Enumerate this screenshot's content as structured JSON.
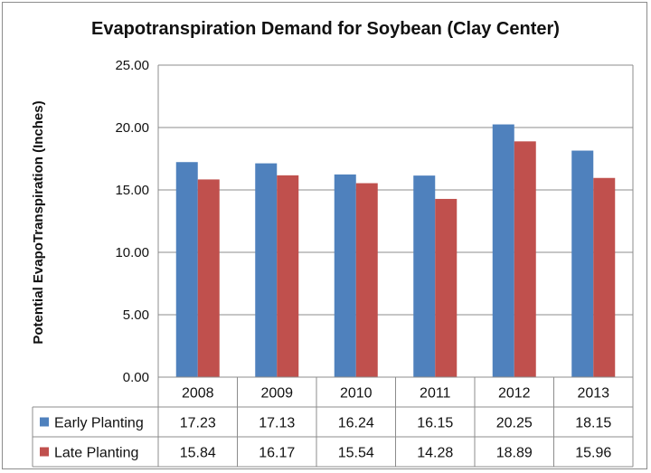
{
  "chart_data": {
    "type": "bar",
    "title": "Evapotranspiration Demand for Soybean (Clay Center)",
    "xlabel": "",
    "ylabel": "Potential EvapoTranspiration (Inches)",
    "ylim": [
      0,
      25
    ],
    "yticks": [
      "0.00",
      "5.00",
      "10.00",
      "15.00",
      "20.00",
      "25.00"
    ],
    "grid": true,
    "legend": "data-table",
    "categories": [
      "2008",
      "2009",
      "2010",
      "2011",
      "2012",
      "2013"
    ],
    "series": [
      {
        "name": "Early Planting",
        "color": "#4f81bd",
        "values": [
          17.23,
          17.13,
          16.24,
          16.15,
          20.25,
          18.15
        ],
        "labels": [
          "17.23",
          "17.13",
          "16.24",
          "16.15",
          "20.25",
          "18.15"
        ]
      },
      {
        "name": "Late Planting",
        "color": "#c0504d",
        "values": [
          15.84,
          16.17,
          15.54,
          14.28,
          18.89,
          15.96
        ],
        "labels": [
          "15.84",
          "16.17",
          "15.54",
          "14.28",
          "18.89",
          "15.96"
        ]
      }
    ]
  }
}
